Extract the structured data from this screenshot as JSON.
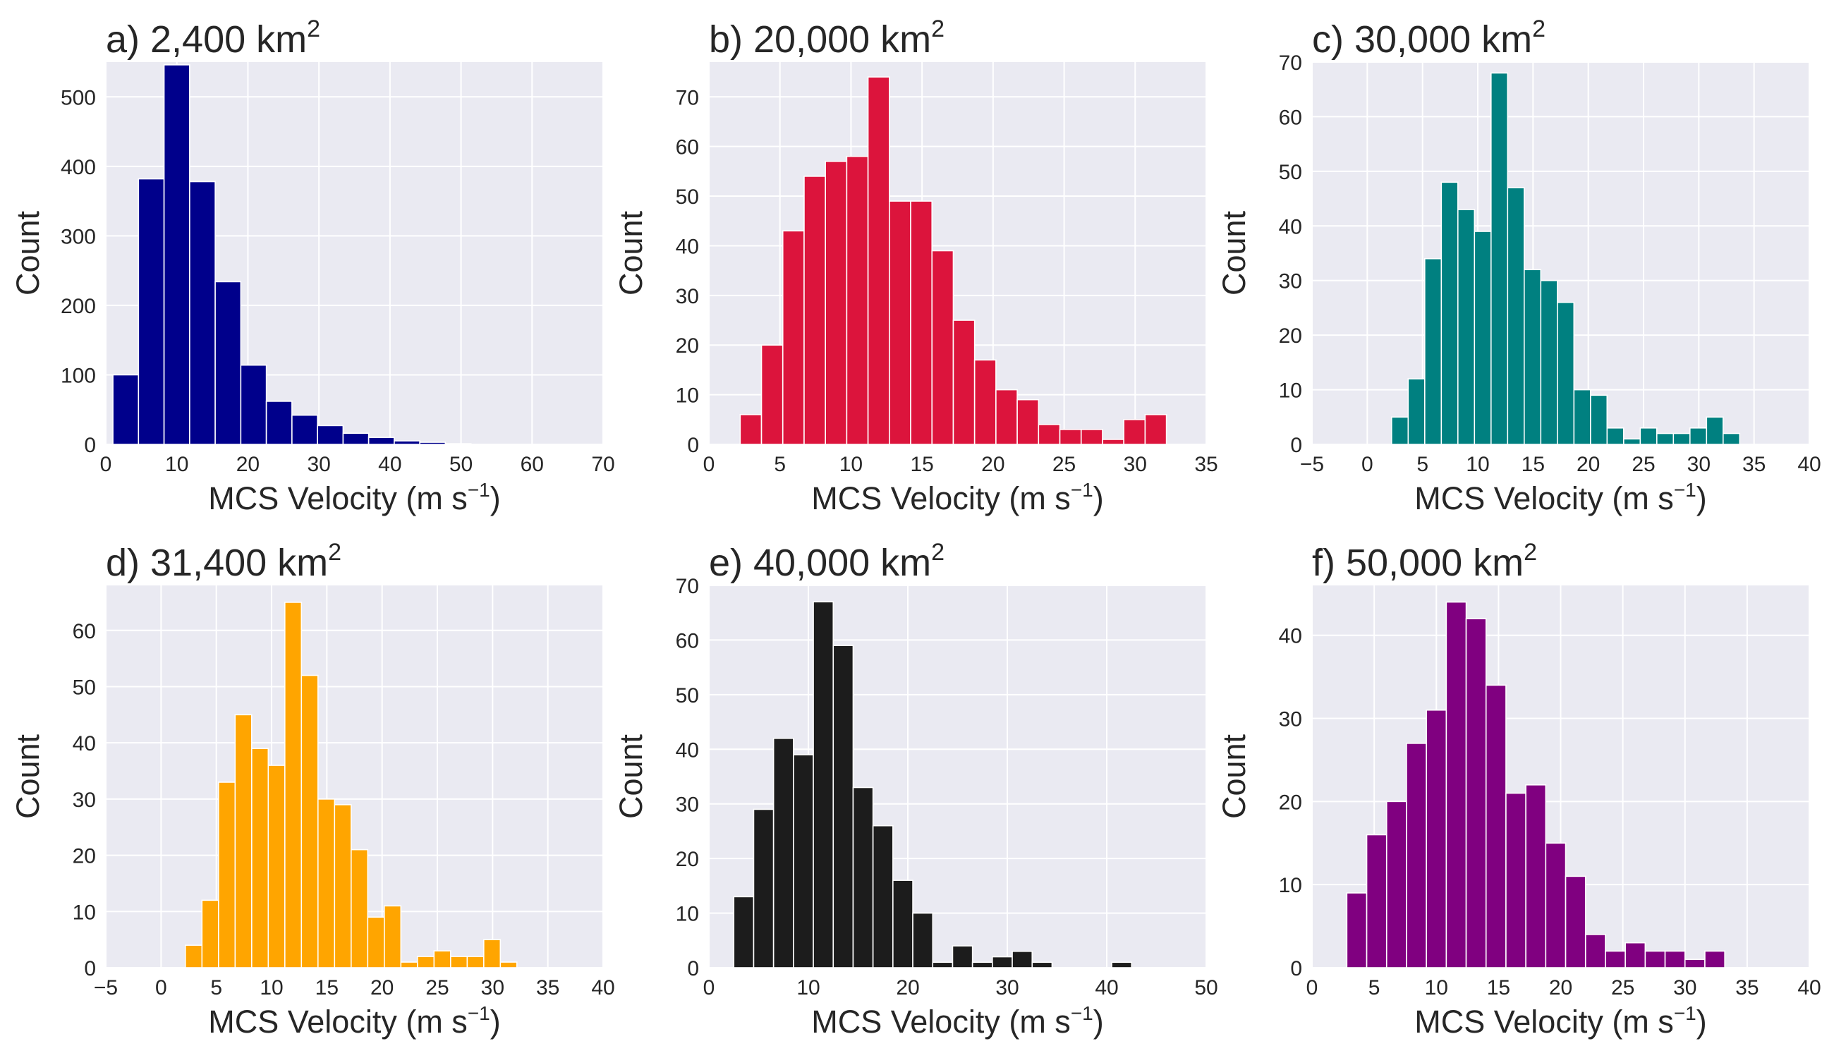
{
  "figure": {
    "ylabel": "Count",
    "xlabel_main": "MCS Velocity (m s",
    "xlabel_sup": "−1",
    "xlabel_end": ")",
    "title_unit": "km",
    "title_unit_sup": "2"
  },
  "chart_data": [
    {
      "type": "bar",
      "panel": "a)",
      "title_area": "2,400",
      "color": "#00008b",
      "xlim": [
        0,
        70
      ],
      "ylim": [
        0,
        550
      ],
      "xticks": [
        0,
        10,
        20,
        30,
        40,
        50,
        60,
        70
      ],
      "yticks": [
        0,
        100,
        200,
        300,
        400,
        500
      ],
      "bin_width": 3.6,
      "bin_starts": [
        1,
        4.6,
        8.2,
        11.8,
        15.4,
        19,
        22.6,
        26.2,
        29.8,
        33.4,
        37,
        40.6,
        44.2,
        47.8
      ],
      "values": [
        100,
        382,
        546,
        378,
        234,
        114,
        62,
        42,
        27,
        16,
        10,
        5,
        3,
        1
      ],
      "grid": true
    },
    {
      "type": "bar",
      "panel": "b)",
      "title_area": "20,000",
      "color": "#dc143c",
      "xlim": [
        0,
        35
      ],
      "ylim": [
        0,
        77
      ],
      "xticks": [
        0,
        5,
        10,
        15,
        20,
        25,
        30,
        35
      ],
      "yticks": [
        0,
        10,
        20,
        30,
        40,
        50,
        60,
        70
      ],
      "bin_width": 1.5,
      "bin_starts": [
        2.2,
        3.7,
        5.2,
        6.7,
        8.2,
        9.7,
        11.2,
        12.7,
        14.2,
        15.7,
        17.2,
        18.7,
        20.2,
        21.7,
        23.2,
        24.7,
        26.2,
        27.7,
        29.2,
        30.7
      ],
      "values": [
        6,
        20,
        43,
        54,
        57,
        58,
        74,
        49,
        49,
        39,
        25,
        17,
        11,
        9,
        4,
        3,
        3,
        1,
        5,
        6
      ],
      "grid": true
    },
    {
      "type": "bar",
      "panel": "c)",
      "title_area": "30,000",
      "color": "#008080",
      "xlim": [
        -5,
        40
      ],
      "ylim": [
        0,
        70
      ],
      "xticks": [
        -5,
        0,
        5,
        10,
        15,
        20,
        25,
        30,
        35,
        40
      ],
      "yticks": [
        0,
        10,
        20,
        30,
        40,
        50,
        60,
        70
      ],
      "bin_width": 1.5,
      "bin_starts": [
        2.2,
        3.7,
        5.2,
        6.7,
        8.2,
        9.7,
        11.2,
        12.7,
        14.2,
        15.7,
        17.2,
        18.7,
        20.2,
        21.7,
        23.2,
        24.7,
        26.2,
        27.7,
        29.2,
        30.7,
        32.2
      ],
      "values": [
        5,
        12,
        34,
        48,
        43,
        39,
        68,
        47,
        32,
        30,
        26,
        10,
        9,
        3,
        1,
        3,
        2,
        2,
        3,
        5,
        2
      ],
      "grid": true
    },
    {
      "type": "bar",
      "panel": "d)",
      "title_area": "31,400",
      "color": "#ffa500",
      "xlim": [
        -5,
        40
      ],
      "ylim": [
        0,
        68
      ],
      "xticks": [
        -5,
        0,
        5,
        10,
        15,
        20,
        25,
        30,
        35,
        40
      ],
      "yticks": [
        0,
        10,
        20,
        30,
        40,
        50,
        60
      ],
      "bin_width": 1.5,
      "bin_starts": [
        2.2,
        3.7,
        5.2,
        6.7,
        8.2,
        9.7,
        11.2,
        12.7,
        14.2,
        15.7,
        17.2,
        18.7,
        20.2,
        21.7,
        23.2,
        24.7,
        26.2,
        27.7,
        29.2,
        30.7,
        32.2
      ],
      "values": [
        4,
        12,
        33,
        45,
        39,
        36,
        65,
        52,
        30,
        29,
        21,
        9,
        11,
        1,
        2,
        3,
        2,
        2,
        5,
        1,
        0
      ],
      "grid": true
    },
    {
      "type": "bar",
      "panel": "e)",
      "title_area": "40,000",
      "color": "#1c1c1c",
      "xlim": [
        0,
        50
      ],
      "ylim": [
        0,
        70
      ],
      "xticks": [
        0,
        10,
        20,
        30,
        40,
        50
      ],
      "yticks": [
        0,
        10,
        20,
        30,
        40,
        50,
        60,
        70
      ],
      "bin_width": 2.0,
      "bin_starts": [
        2.5,
        4.5,
        6.5,
        8.5,
        10.5,
        12.5,
        14.5,
        16.5,
        18.5,
        20.5,
        22.5,
        24.5,
        26.5,
        28.5,
        30.5,
        32.5,
        34.5,
        36.5,
        38.5,
        40.5
      ],
      "values": [
        13,
        29,
        42,
        39,
        67,
        59,
        33,
        26,
        16,
        10,
        1,
        4,
        1,
        2,
        3,
        1,
        0,
        0,
        0,
        1
      ],
      "grid": true
    },
    {
      "type": "bar",
      "panel": "f)",
      "title_area": "50,000",
      "color": "#800080",
      "xlim": [
        0,
        40
      ],
      "ylim": [
        0,
        46
      ],
      "xticks": [
        0,
        5,
        10,
        15,
        20,
        25,
        30,
        35,
        40
      ],
      "yticks": [
        0,
        10,
        20,
        30,
        40
      ],
      "bin_width": 1.6,
      "bin_starts": [
        2.8,
        4.4,
        6.0,
        7.6,
        9.2,
        10.8,
        12.4,
        14.0,
        15.6,
        17.2,
        18.8,
        20.4,
        22.0,
        23.6,
        25.2,
        26.8,
        28.4,
        30.0,
        31.6
      ],
      "values": [
        9,
        16,
        20,
        27,
        31,
        44,
        42,
        34,
        21,
        22,
        15,
        11,
        4,
        2,
        3,
        2,
        2,
        1,
        2
      ],
      "grid": true
    }
  ]
}
